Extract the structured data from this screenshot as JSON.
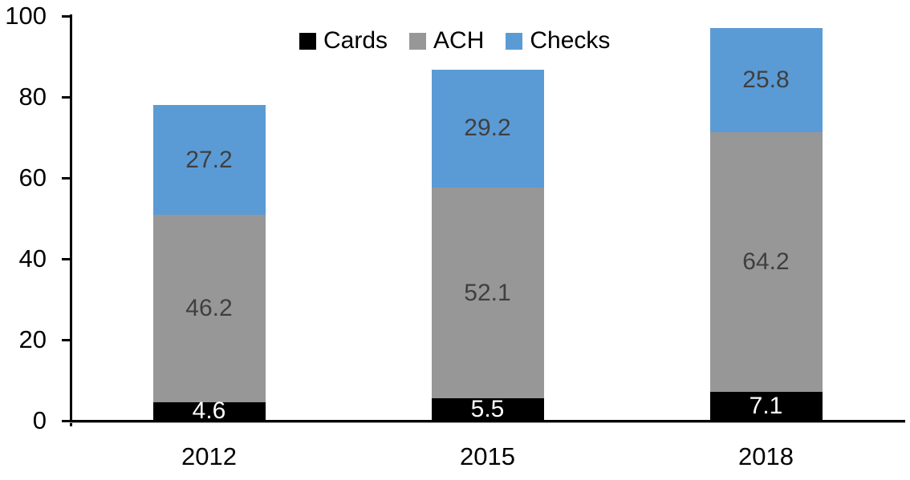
{
  "chart_data": {
    "type": "bar",
    "stacked": true,
    "title": "",
    "xlabel": "",
    "ylabel": "",
    "categories": [
      "2012",
      "2015",
      "2018"
    ],
    "series": [
      {
        "name": "Cards",
        "color": "#000000",
        "label_color": "#ffffff",
        "values": [
          4.6,
          5.5,
          7.1
        ]
      },
      {
        "name": "ACH",
        "color": "#979797",
        "label_color": "#3f3f3f",
        "values": [
          46.2,
          52.1,
          64.2
        ]
      },
      {
        "name": "Checks",
        "color": "#5b9bd5",
        "label_color": "#3f3f3f",
        "values": [
          27.2,
          29.2,
          25.8
        ]
      }
    ],
    "totals": [
      78.0,
      86.8,
      97.1
    ],
    "yticks": [
      0,
      20,
      40,
      60,
      80,
      100
    ],
    "ylim": [
      0,
      100
    ],
    "grid": false,
    "legend_position": "top-center",
    "data_labels": true,
    "axis_color": "#000000",
    "background_color": "#ffffff"
  }
}
